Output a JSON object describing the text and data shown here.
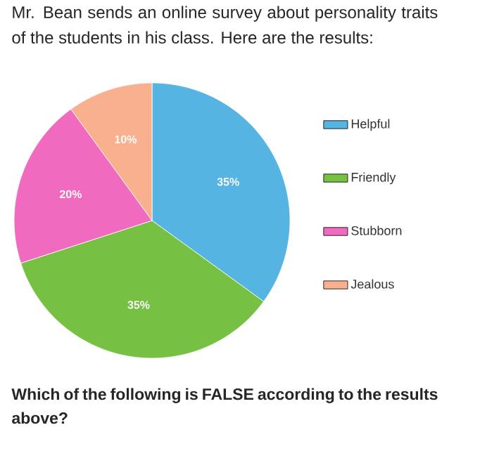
{
  "chart_data": {
    "type": "pie",
    "title": "Mr. Bean sends an online survey about personality traits of the students in his class. Here are the results:",
    "annotations": [
      "Which of the following is FALSE according to the results above?"
    ],
    "categories": [
      "Helpful",
      "Friendly",
      "Stubborn",
      "Jealous"
    ],
    "values": [
      35,
      35,
      20,
      10
    ],
    "value_labels": [
      "35%",
      "35%",
      "20%",
      "10%"
    ],
    "colors": [
      "#56b4e3",
      "#76c043",
      "#f06bc0",
      "#f9b08e"
    ],
    "legend": "right"
  }
}
